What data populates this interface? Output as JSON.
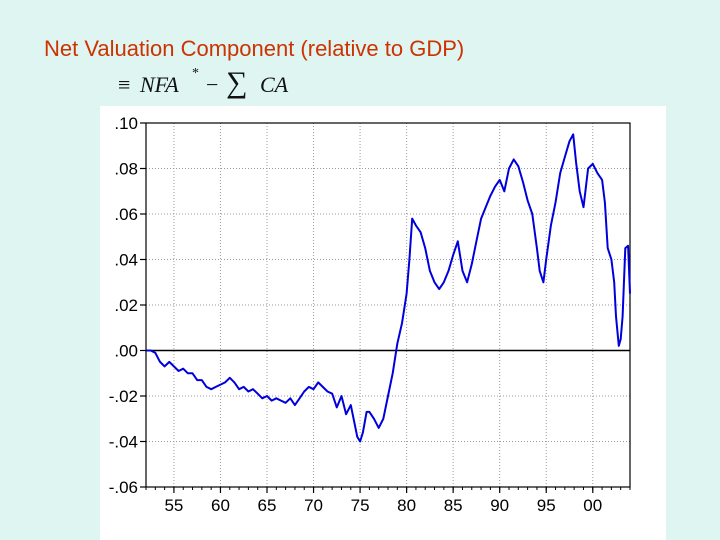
{
  "slide": {
    "title": "Net Valuation Component (relative to GDP)",
    "formula": {
      "equiv": "≡",
      "nfa": "NFA",
      "star": "*",
      "minus": "−",
      "sum": "∑",
      "ca": "CA"
    }
  },
  "colors": {
    "background": "#dff5f2",
    "title": "#cc3300",
    "series": "#0000dd",
    "grid": "#9a9a9a",
    "axis": "#000000"
  },
  "chart_data": {
    "type": "line",
    "title": "Net Valuation Component (relative to GDP)",
    "xlabel": "",
    "ylabel": "",
    "xlim": [
      1952,
      2004
    ],
    "ylim": [
      -0.06,
      0.1
    ],
    "grid": true,
    "x_ticks": [
      55,
      60,
      65,
      70,
      75,
      80,
      85,
      90,
      95,
      0
    ],
    "x_tick_labels": [
      "55",
      "60",
      "65",
      "70",
      "75",
      "80",
      "85",
      "90",
      "95",
      "00"
    ],
    "y_ticks": [
      0.1,
      0.08,
      0.06,
      0.04,
      0.02,
      0.0,
      -0.02,
      -0.04,
      -0.06
    ],
    "y_tick_labels": [
      ".10",
      ".08",
      ".06",
      ".04",
      ".02",
      ".00",
      "-.02",
      "-.04",
      "-.06"
    ],
    "zero_line": 0.0,
    "series": [
      {
        "name": "Net Valuation Component",
        "points": [
          [
            1952.0,
            0.0
          ],
          [
            1952.5,
            0.0
          ],
          [
            1953.0,
            -0.001
          ],
          [
            1953.5,
            -0.005
          ],
          [
            1954.0,
            -0.007
          ],
          [
            1954.5,
            -0.005
          ],
          [
            1955.0,
            -0.007
          ],
          [
            1955.5,
            -0.009
          ],
          [
            1956.0,
            -0.008
          ],
          [
            1956.5,
            -0.01
          ],
          [
            1957.0,
            -0.01
          ],
          [
            1957.5,
            -0.013
          ],
          [
            1958.0,
            -0.013
          ],
          [
            1958.5,
            -0.016
          ],
          [
            1959.0,
            -0.017
          ],
          [
            1959.5,
            -0.016
          ],
          [
            1960.0,
            -0.015
          ],
          [
            1960.5,
            -0.014
          ],
          [
            1961.0,
            -0.012
          ],
          [
            1961.5,
            -0.014
          ],
          [
            1962.0,
            -0.017
          ],
          [
            1962.5,
            -0.016
          ],
          [
            1963.0,
            -0.018
          ],
          [
            1963.5,
            -0.017
          ],
          [
            1964.0,
            -0.019
          ],
          [
            1964.5,
            -0.021
          ],
          [
            1965.0,
            -0.02
          ],
          [
            1965.5,
            -0.022
          ],
          [
            1966.0,
            -0.021
          ],
          [
            1966.5,
            -0.022
          ],
          [
            1967.0,
            -0.023
          ],
          [
            1967.5,
            -0.021
          ],
          [
            1968.0,
            -0.024
          ],
          [
            1968.5,
            -0.021
          ],
          [
            1969.0,
            -0.018
          ],
          [
            1969.5,
            -0.016
          ],
          [
            1970.0,
            -0.017
          ],
          [
            1970.5,
            -0.014
          ],
          [
            1971.0,
            -0.016
          ],
          [
            1971.5,
            -0.018
          ],
          [
            1972.0,
            -0.019
          ],
          [
            1972.5,
            -0.025
          ],
          [
            1973.0,
            -0.02
          ],
          [
            1973.5,
            -0.028
          ],
          [
            1974.0,
            -0.024
          ],
          [
            1974.3,
            -0.03
          ],
          [
            1974.7,
            -0.038
          ],
          [
            1975.0,
            -0.04
          ],
          [
            1975.3,
            -0.036
          ],
          [
            1975.7,
            -0.027
          ],
          [
            1976.0,
            -0.027
          ],
          [
            1976.5,
            -0.03
          ],
          [
            1977.0,
            -0.034
          ],
          [
            1977.5,
            -0.03
          ],
          [
            1978.0,
            -0.02
          ],
          [
            1978.5,
            -0.01
          ],
          [
            1979.0,
            0.003
          ],
          [
            1979.5,
            0.012
          ],
          [
            1980.0,
            0.025
          ],
          [
            1980.3,
            0.04
          ],
          [
            1980.6,
            0.058
          ],
          [
            1981.0,
            0.055
          ],
          [
            1981.5,
            0.052
          ],
          [
            1982.0,
            0.045
          ],
          [
            1982.5,
            0.035
          ],
          [
            1983.0,
            0.03
          ],
          [
            1983.5,
            0.027
          ],
          [
            1984.0,
            0.03
          ],
          [
            1984.5,
            0.035
          ],
          [
            1985.0,
            0.042
          ],
          [
            1985.5,
            0.048
          ],
          [
            1986.0,
            0.035
          ],
          [
            1986.5,
            0.03
          ],
          [
            1987.0,
            0.038
          ],
          [
            1987.5,
            0.048
          ],
          [
            1988.0,
            0.058
          ],
          [
            1988.5,
            0.063
          ],
          [
            1989.0,
            0.068
          ],
          [
            1989.5,
            0.072
          ],
          [
            1990.0,
            0.075
          ],
          [
            1990.5,
            0.07
          ],
          [
            1991.0,
            0.08
          ],
          [
            1991.5,
            0.084
          ],
          [
            1992.0,
            0.081
          ],
          [
            1992.5,
            0.074
          ],
          [
            1993.0,
            0.066
          ],
          [
            1993.5,
            0.06
          ],
          [
            1994.0,
            0.045
          ],
          [
            1994.3,
            0.035
          ],
          [
            1994.7,
            0.03
          ],
          [
            1995.0,
            0.04
          ],
          [
            1995.5,
            0.055
          ],
          [
            1996.0,
            0.065
          ],
          [
            1996.5,
            0.078
          ],
          [
            1997.0,
            0.085
          ],
          [
            1997.5,
            0.092
          ],
          [
            1997.9,
            0.095
          ],
          [
            1998.2,
            0.083
          ],
          [
            1998.6,
            0.07
          ],
          [
            1999.0,
            0.063
          ],
          [
            1999.5,
            0.08
          ],
          [
            2000.0,
            0.082
          ],
          [
            2000.5,
            0.078
          ],
          [
            2001.0,
            0.075
          ],
          [
            2001.3,
            0.065
          ],
          [
            2001.6,
            0.045
          ],
          [
            2002.0,
            0.04
          ],
          [
            2002.3,
            0.03
          ],
          [
            2002.5,
            0.015
          ],
          [
            2002.8,
            0.002
          ],
          [
            2003.0,
            0.005
          ],
          [
            2003.2,
            0.015
          ],
          [
            2003.5,
            0.045
          ],
          [
            2003.8,
            0.046
          ],
          [
            2004.0,
            0.025
          ]
        ]
      }
    ]
  }
}
